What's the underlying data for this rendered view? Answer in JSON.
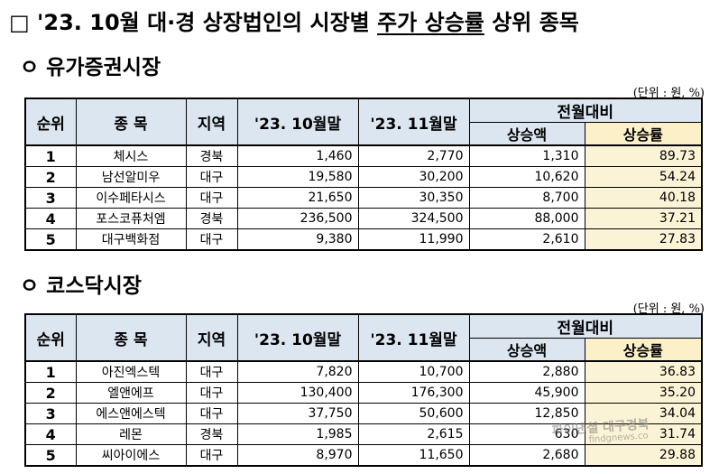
{
  "title_box": "□",
  "title_pre": " '23. 10월 대·경 상장법인의 시장별 ",
  "title_underline": "주가 상승률",
  "title_post": " 상위 종목",
  "headers": {
    "rank": "순위",
    "name": "종 목",
    "region": "지역",
    "oct": "'23. 10월말",
    "nov": "'23. 11월말",
    "mom": "전월대비",
    "increase": "상승액",
    "rate": "상승률"
  },
  "kospi": {
    "heading": "ㅇ 유가증권시장",
    "unit": "(단위 : 원, %)",
    "rows": [
      {
        "rank": "1",
        "name": "체시스",
        "region": "경북",
        "oct": "1,460",
        "nov": "2,770",
        "inc": "1,310",
        "rate": "89.73"
      },
      {
        "rank": "2",
        "name": "남선알미우",
        "region": "대구",
        "oct": "19,580",
        "nov": "30,200",
        "inc": "10,620",
        "rate": "54.24"
      },
      {
        "rank": "3",
        "name": "이수페타시스",
        "region": "대구",
        "oct": "21,650",
        "nov": "30,350",
        "inc": "8,700",
        "rate": "40.18"
      },
      {
        "rank": "4",
        "name": "포스코퓨처엠",
        "region": "경북",
        "oct": "236,500",
        "nov": "324,500",
        "inc": "88,000",
        "rate": "37.21"
      },
      {
        "rank": "5",
        "name": "대구백화점",
        "region": "대구",
        "oct": "9,380",
        "nov": "11,990",
        "inc": "2,610",
        "rate": "27.83"
      }
    ]
  },
  "kosdaq": {
    "heading": "ㅇ 코스닥시장",
    "unit": "(단위 : 원, %)",
    "rows": [
      {
        "rank": "1",
        "name": "아진엑스텍",
        "region": "대구",
        "oct": "7,820",
        "nov": "10,700",
        "inc": "2,880",
        "rate": "36.83"
      },
      {
        "rank": "2",
        "name": "엘앤에프",
        "region": "대구",
        "oct": "130,400",
        "nov": "176,300",
        "inc": "45,900",
        "rate": "35.20"
      },
      {
        "rank": "3",
        "name": "에스앤에스텍",
        "region": "대구",
        "oct": "37,750",
        "nov": "50,600",
        "inc": "12,850",
        "rate": "34.04"
      },
      {
        "rank": "4",
        "name": "레몬",
        "region": "경북",
        "oct": "1,985",
        "nov": "2,615",
        "inc": "630",
        "rate": "31.74"
      },
      {
        "rank": "5",
        "name": "씨아이에스",
        "region": "대구",
        "oct": "8,970",
        "nov": "11,650",
        "inc": "2,680",
        "rate": "29.88"
      }
    ]
  },
  "watermark": "파이낸셜 대구경북",
  "watermark_url": "findgnews.co"
}
